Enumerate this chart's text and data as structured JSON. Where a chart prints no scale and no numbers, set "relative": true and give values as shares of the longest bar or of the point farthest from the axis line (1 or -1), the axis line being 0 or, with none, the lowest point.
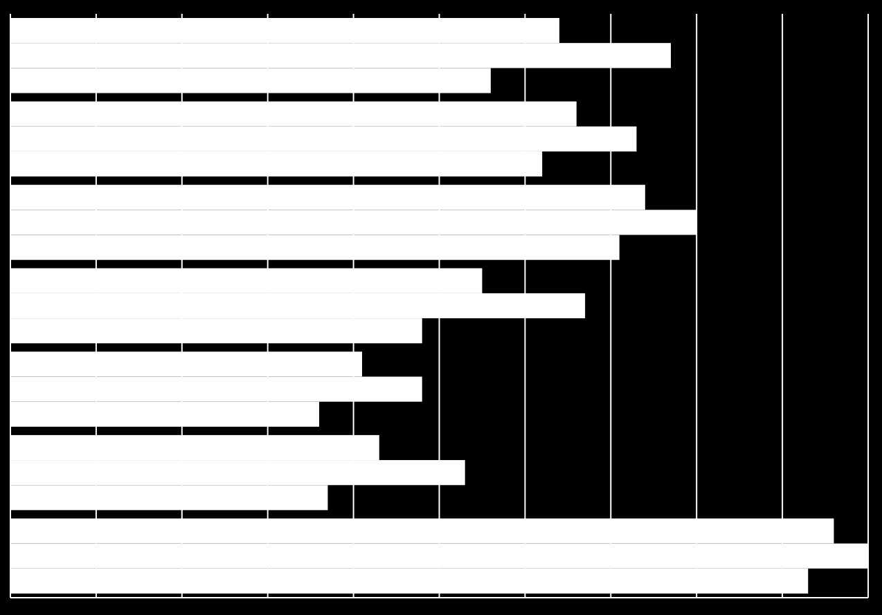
{
  "chart_data": {
    "type": "bar",
    "orientation": "horizontal",
    "relative": true,
    "grid": "x",
    "categories": [
      null,
      null,
      null,
      null,
      null,
      null,
      null
    ],
    "series": [
      {
        "color": "#ffffff",
        "values": [
          0.64,
          0.66,
          0.74,
          0.55,
          0.41,
          0.43,
          0.96
        ]
      },
      {
        "color": "#ffffff",
        "values": [
          0.77,
          0.73,
          0.8,
          0.67,
          0.48,
          0.53,
          1
        ]
      },
      {
        "color": "#ffffff",
        "values": [
          0.56,
          0.62,
          0.71,
          0.48,
          0.36,
          0.37,
          0.93
        ]
      }
    ]
  }
}
